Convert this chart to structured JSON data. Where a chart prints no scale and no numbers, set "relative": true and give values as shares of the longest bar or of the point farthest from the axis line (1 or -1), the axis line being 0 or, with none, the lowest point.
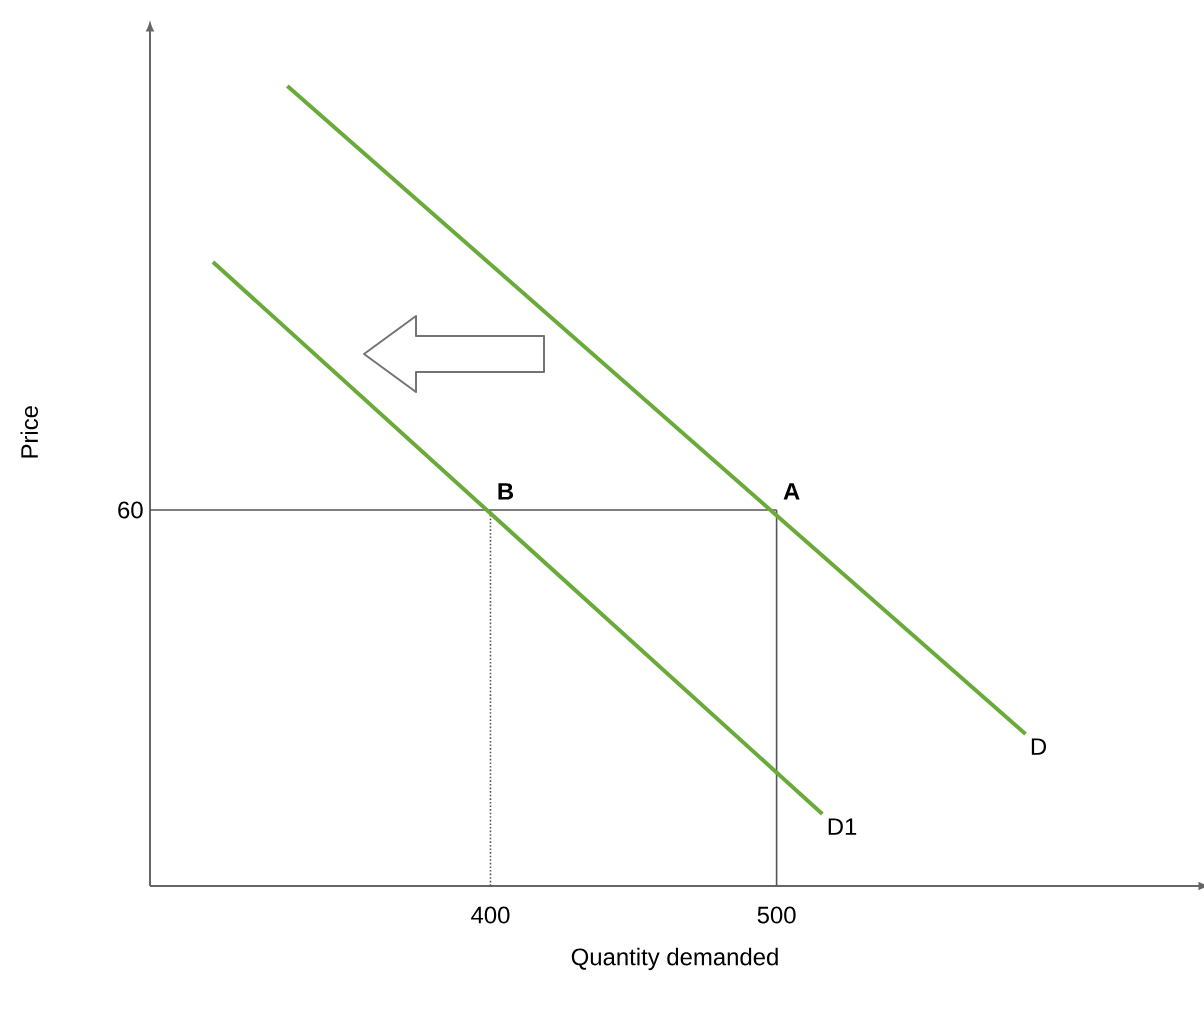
{
  "chart_data": {
    "type": "line",
    "xlabel": "Quantity demanded",
    "ylabel": "Price",
    "relative": true,
    "series": [
      {
        "name": "D",
        "color": "#6aaa3a",
        "x": [
          329,
          587
        ],
        "values": [
          1,
          0.19
        ]
      },
      {
        "name": "D1",
        "color": "#6aaa3a",
        "x": [
          303,
          516
        ],
        "values": [
          0.78,
          0.09
        ]
      }
    ],
    "xlim": [
      281,
      648
    ],
    "xticks": [
      400,
      500
    ],
    "ref_lines": [
      {
        "axis": "y",
        "value": 0.47,
        "color": "#555555",
        "line_style": "solid"
      },
      {
        "axis": "x",
        "value": 400,
        "color": "#555555",
        "line_style": "dotted"
      },
      {
        "axis": "x",
        "value": 500,
        "color": "#555555",
        "line_style": "solid"
      }
    ],
    "annotations": [
      {
        "text": "A",
        "x": 500,
        "y": 0.47
      },
      {
        "text": "B",
        "x": 400,
        "y": 0.47
      },
      "60"
    ],
    "grid": false,
    "legend": false,
    "marker": "none",
    "line_style": "solid"
  }
}
